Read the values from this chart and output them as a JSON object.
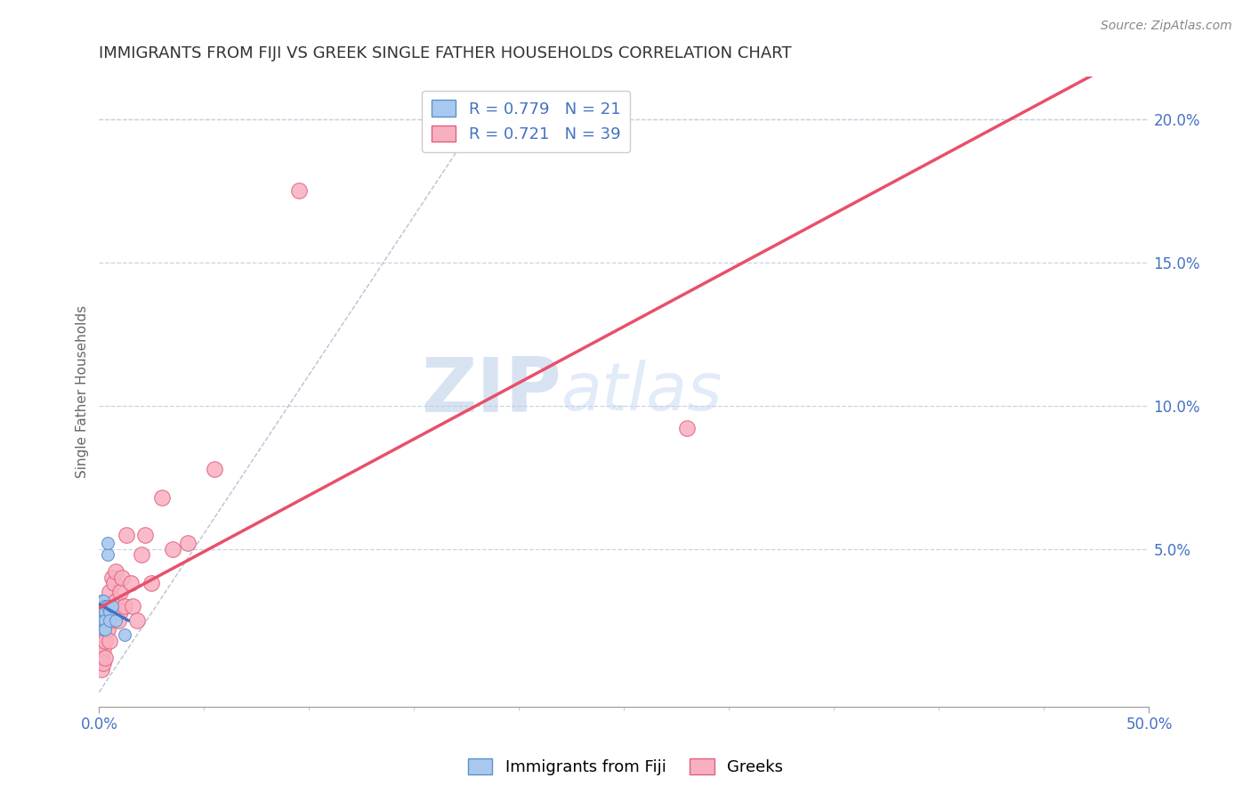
{
  "title": "IMMIGRANTS FROM FIJI VS GREEK SINGLE FATHER HOUSEHOLDS CORRELATION CHART",
  "source_text": "Source: ZipAtlas.com",
  "ylabel": "Single Father Households",
  "xlim": [
    0.0,
    0.5
  ],
  "ylim": [
    -0.005,
    0.215
  ],
  "ytick_positions": [
    0.05,
    0.1,
    0.15,
    0.2
  ],
  "ytick_labels": [
    "5.0%",
    "10.0%",
    "15.0%",
    "20.0%"
  ],
  "watermark_zip": "ZIP",
  "watermark_atlas": "atlas",
  "fiji_color": "#a8c8f0",
  "fiji_edge_color": "#6090c8",
  "greek_color": "#f8b0c0",
  "greek_edge_color": "#e06080",
  "fiji_line_color": "#4472c4",
  "greek_line_color": "#e8506a",
  "ref_line_color": "#aab0c8",
  "grid_color": "#c8cce0",
  "legend_fiji_R": "0.779",
  "legend_fiji_N": "21",
  "legend_greek_R": "0.721",
  "legend_greek_N": "39",
  "fiji_scatter_x": [
    0.001,
    0.001,
    0.001,
    0.001,
    0.002,
    0.002,
    0.002,
    0.002,
    0.002,
    0.003,
    0.003,
    0.003,
    0.003,
    0.004,
    0.004,
    0.004,
    0.005,
    0.005,
    0.006,
    0.008,
    0.012
  ],
  "fiji_scatter_y": [
    0.028,
    0.03,
    0.032,
    0.025,
    0.03,
    0.032,
    0.028,
    0.022,
    0.025,
    0.03,
    0.028,
    0.025,
    0.022,
    0.048,
    0.052,
    0.03,
    0.028,
    0.025,
    0.03,
    0.025,
    0.02
  ],
  "greek_scatter_x": [
    0.001,
    0.001,
    0.001,
    0.001,
    0.002,
    0.002,
    0.002,
    0.003,
    0.003,
    0.003,
    0.004,
    0.004,
    0.005,
    0.005,
    0.005,
    0.006,
    0.006,
    0.007,
    0.007,
    0.008,
    0.008,
    0.009,
    0.01,
    0.01,
    0.011,
    0.012,
    0.013,
    0.015,
    0.016,
    0.018,
    0.02,
    0.022,
    0.025,
    0.03,
    0.035,
    0.042,
    0.055,
    0.095,
    0.28
  ],
  "greek_scatter_y": [
    0.018,
    0.022,
    0.012,
    0.008,
    0.02,
    0.015,
    0.01,
    0.025,
    0.018,
    0.012,
    0.03,
    0.022,
    0.035,
    0.025,
    0.018,
    0.04,
    0.03,
    0.038,
    0.028,
    0.042,
    0.032,
    0.025,
    0.035,
    0.028,
    0.04,
    0.03,
    0.055,
    0.038,
    0.03,
    0.025,
    0.048,
    0.055,
    0.038,
    0.068,
    0.05,
    0.052,
    0.078,
    0.175,
    0.092
  ],
  "title_color": "#333333",
  "tick_label_color": "#4472c4",
  "background_color": "#ffffff"
}
